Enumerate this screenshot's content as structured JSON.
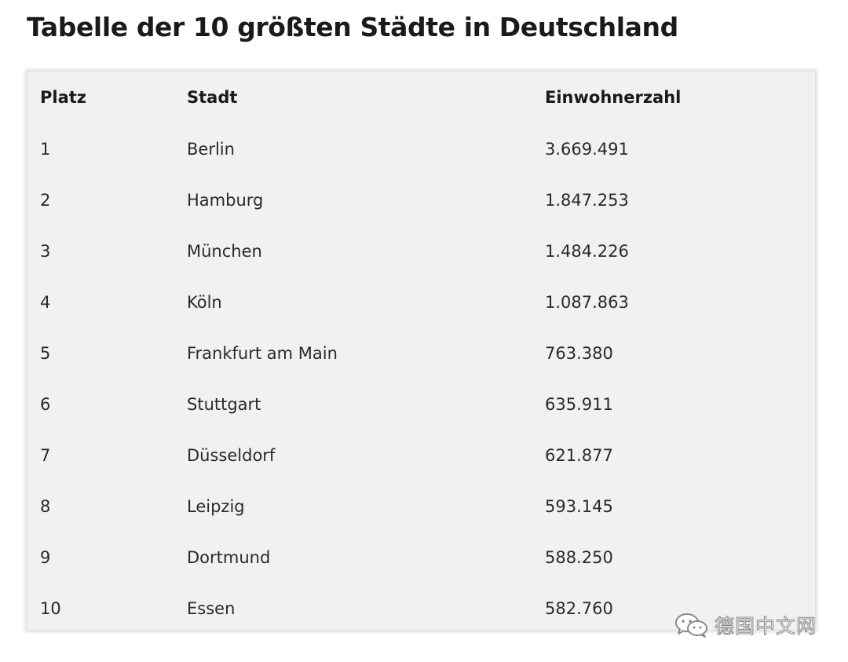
{
  "title": "Tabelle der 10 größten Städte in Deutschland",
  "table": {
    "headers": {
      "rank": "Platz",
      "city": "Stadt",
      "population": "Einwohnerzahl"
    },
    "rows": [
      {
        "rank": "1",
        "city": "Berlin",
        "population": "3.669.491"
      },
      {
        "rank": "2",
        "city": "Hamburg",
        "population": "1.847.253"
      },
      {
        "rank": "3",
        "city": "München",
        "population": "1.484.226"
      },
      {
        "rank": "4",
        "city": "Köln",
        "population": "1.087.863"
      },
      {
        "rank": "5",
        "city": "Frankfurt am Main",
        "population": "763.380"
      },
      {
        "rank": "6",
        "city": "Stuttgart",
        "population": "635.911"
      },
      {
        "rank": "7",
        "city": "Düsseldorf",
        "population": "621.877"
      },
      {
        "rank": "8",
        "city": "Leipzig",
        "population": "593.145"
      },
      {
        "rank": "9",
        "city": "Dortmund",
        "population": "588.250"
      },
      {
        "rank": "10",
        "city": "Essen",
        "population": "582.760"
      }
    ]
  },
  "watermark": {
    "icon": "wechat-icon",
    "text": "德国中文网"
  },
  "colors": {
    "panel_background": "#f1f1f1",
    "text": "#1a1a1a",
    "watermark": "#8a8a8a"
  }
}
